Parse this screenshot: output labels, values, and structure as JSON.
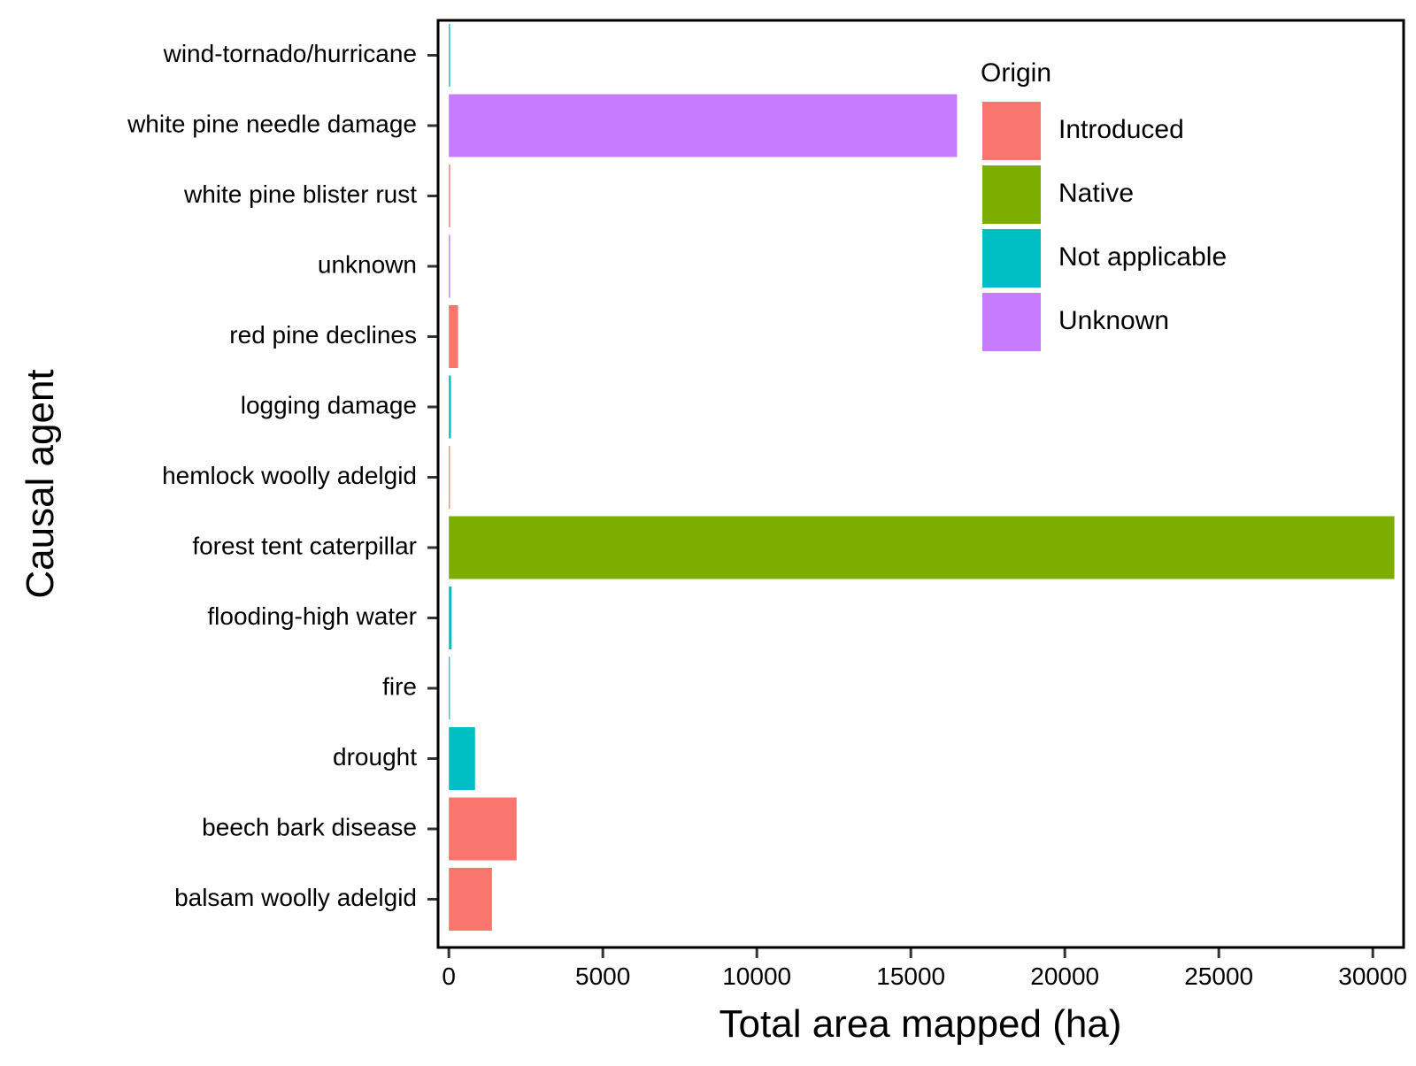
{
  "chart_data": {
    "type": "bar",
    "orientation": "horizontal",
    "xlabel": "Total area mapped (ha)",
    "ylabel": "Causal agent",
    "xlim": [
      -350,
      31000
    ],
    "x_ticks": [
      0,
      5000,
      10000,
      15000,
      20000,
      25000,
      30000
    ],
    "x_tick_labels": [
      "0",
      "5000",
      "10000",
      "15000",
      "20000",
      "25000",
      "30000"
    ],
    "grid": false,
    "legend": {
      "title": "Origin",
      "position": "top-right",
      "entries": [
        {
          "label": "Introduced",
          "color": "#F8766D"
        },
        {
          "label": "Native",
          "color": "#7CAE00"
        },
        {
          "label": "Not applicable",
          "color": "#00BFC4"
        },
        {
          "label": "Unknown",
          "color": "#C77CFF"
        }
      ]
    },
    "bars": [
      {
        "category": "wind-tornado/hurricane",
        "value": 40,
        "origin": "Not applicable"
      },
      {
        "category": "white pine needle damage",
        "value": 16500,
        "origin": "Unknown"
      },
      {
        "category": "white pine blister rust",
        "value": 40,
        "origin": "Introduced"
      },
      {
        "category": "unknown",
        "value": 40,
        "origin": "Unknown"
      },
      {
        "category": "red pine declines",
        "value": 300,
        "origin": "Introduced"
      },
      {
        "category": "logging damage",
        "value": 70,
        "origin": "Not applicable"
      },
      {
        "category": "hemlock woolly adelgid",
        "value": 5,
        "origin": "Introduced"
      },
      {
        "category": "forest tent caterpillar",
        "value": 30700,
        "origin": "Native"
      },
      {
        "category": "flooding-high water",
        "value": 90,
        "origin": "Not applicable"
      },
      {
        "category": "fire",
        "value": 5,
        "origin": "Not applicable"
      },
      {
        "category": "drought",
        "value": 850,
        "origin": "Not applicable"
      },
      {
        "category": "beech bark disease",
        "value": 2200,
        "origin": "Introduced"
      },
      {
        "category": "balsam woolly adelgid",
        "value": 1400,
        "origin": "Introduced"
      }
    ]
  }
}
